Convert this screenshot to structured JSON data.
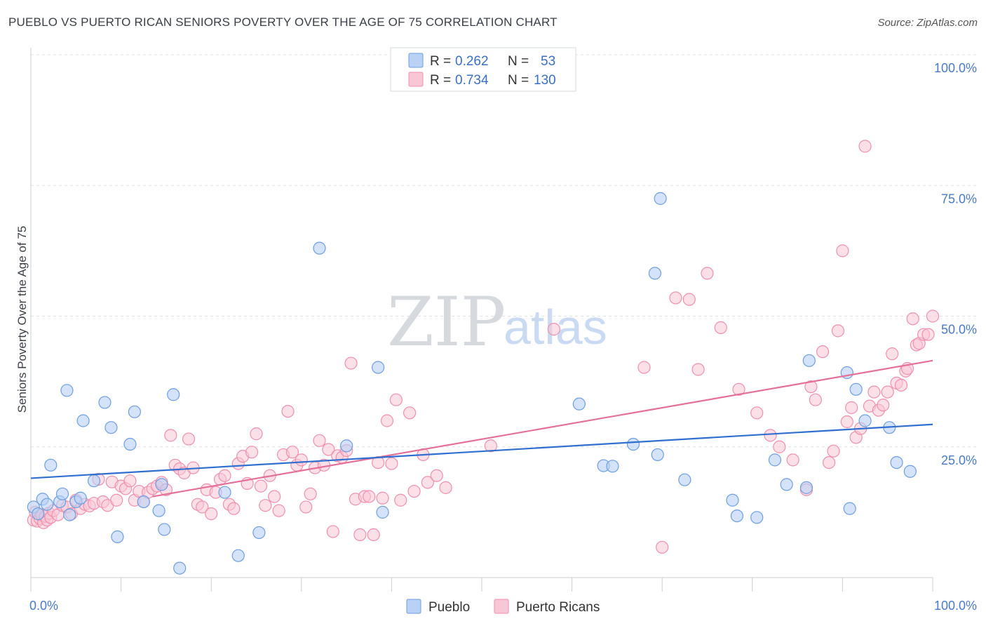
{
  "title": "PUEBLO VS PUERTO RICAN SENIORS POVERTY OVER THE AGE OF 75 CORRELATION CHART",
  "source": "Source: ZipAtlas.com",
  "watermark": {
    "zip": "ZIP",
    "atlas": "atlas"
  },
  "colors": {
    "pueblo_fill": "#b8d1f5",
    "pueblo_stroke": "#6d9ee0",
    "pueblo_line": "#2f6fcf",
    "pr_fill": "#f9c6d6",
    "pr_stroke": "#ee8fad",
    "pr_line": "#e4709a",
    "grid": "#dde0e5",
    "tick_text": "#4a7ac7"
  },
  "legend": {
    "rows": [
      {
        "r_label": "R =",
        "r_value": "0.262",
        "n_label": "N =",
        "n_value": "53"
      },
      {
        "r_label": "R =",
        "r_value": "0.734",
        "n_label": "N =",
        "n_value": "130"
      }
    ]
  },
  "bottom_legend": [
    "Pueblo",
    "Puerto Ricans"
  ],
  "chart_data": {
    "type": "scatter",
    "ylabel": "Seniors Poverty Over the Age of 75",
    "xlabel": "",
    "xlim": [
      0,
      100
    ],
    "ylim": [
      0,
      100
    ],
    "x_tick_labels": [
      "0.0%",
      "100.0%"
    ],
    "y_tick_values": [
      25,
      50,
      75,
      100
    ],
    "y_tick_labels": [
      "25.0%",
      "50.0%",
      "75.0%",
      "100.0%"
    ],
    "grid": true,
    "legend_position": "top-center",
    "series": [
      {
        "name": "Pueblo",
        "trend": [
          [
            0,
            19.0
          ],
          [
            100,
            29.3
          ]
        ],
        "points": [
          [
            0.3,
            13.5
          ],
          [
            0.8,
            12.2
          ],
          [
            1.3,
            15.0
          ],
          [
            1.8,
            14.0
          ],
          [
            2.2,
            21.5
          ],
          [
            3.2,
            14.5
          ],
          [
            3.5,
            16.0
          ],
          [
            4.3,
            12.0
          ],
          [
            5.0,
            14.5
          ],
          [
            5.5,
            15.2
          ],
          [
            4.0,
            35.8
          ],
          [
            5.8,
            30.0
          ],
          [
            7.0,
            18.5
          ],
          [
            8.2,
            33.5
          ],
          [
            8.9,
            28.7
          ],
          [
            9.6,
            7.8
          ],
          [
            11.0,
            25.5
          ],
          [
            11.5,
            31.7
          ],
          [
            12.5,
            14.5
          ],
          [
            14.2,
            12.8
          ],
          [
            14.5,
            17.8
          ],
          [
            14.8,
            9.2
          ],
          [
            15.8,
            35.0
          ],
          [
            16.5,
            1.8
          ],
          [
            21.5,
            16.3
          ],
          [
            23.0,
            4.2
          ],
          [
            25.3,
            8.6
          ],
          [
            32.0,
            63.0
          ],
          [
            35.0,
            25.2
          ],
          [
            38.5,
            40.2
          ],
          [
            39.0,
            12.5
          ],
          [
            60.8,
            33.2
          ],
          [
            63.5,
            21.4
          ],
          [
            64.5,
            21.3
          ],
          [
            66.8,
            25.5
          ],
          [
            69.2,
            58.2
          ],
          [
            69.5,
            23.5
          ],
          [
            69.8,
            72.5
          ],
          [
            72.5,
            18.7
          ],
          [
            77.8,
            14.8
          ],
          [
            78.3,
            11.8
          ],
          [
            80.5,
            11.5
          ],
          [
            82.5,
            22.5
          ],
          [
            83.8,
            17.8
          ],
          [
            86.0,
            17.2
          ],
          [
            86.3,
            41.5
          ],
          [
            90.5,
            39.2
          ],
          [
            90.8,
            13.2
          ],
          [
            91.5,
            36.0
          ],
          [
            92.5,
            30.0
          ],
          [
            95.2,
            28.7
          ],
          [
            96.0,
            22.0
          ],
          [
            97.5,
            20.3
          ]
        ]
      },
      {
        "name": "Puerto Ricans",
        "trend": [
          [
            13.5,
            15.5
          ],
          [
            100,
            41.5
          ]
        ],
        "points": [
          [
            0.3,
            11.0
          ],
          [
            0.5,
            12.5
          ],
          [
            0.7,
            10.8
          ],
          [
            1.0,
            11.3
          ],
          [
            1.2,
            12.0
          ],
          [
            1.4,
            10.5
          ],
          [
            1.6,
            11.7
          ],
          [
            1.8,
            11.0
          ],
          [
            2.0,
            12.3
          ],
          [
            2.2,
            11.5
          ],
          [
            2.5,
            12.8
          ],
          [
            3.0,
            12.0
          ],
          [
            3.5,
            13.8
          ],
          [
            4.0,
            13.5
          ],
          [
            4.5,
            12.2
          ],
          [
            5.0,
            14.8
          ],
          [
            5.5,
            13.2
          ],
          [
            6.0,
            14.0
          ],
          [
            6.5,
            13.7
          ],
          [
            7.0,
            14.2
          ],
          [
            7.5,
            18.8
          ],
          [
            8.0,
            14.5
          ],
          [
            8.5,
            13.8
          ],
          [
            9.0,
            18.3
          ],
          [
            9.5,
            14.8
          ],
          [
            10.0,
            17.5
          ],
          [
            10.5,
            17.0
          ],
          [
            11.0,
            18.5
          ],
          [
            11.5,
            14.8
          ],
          [
            12.0,
            16.5
          ],
          [
            12.5,
            14.5
          ],
          [
            13.0,
            16.3
          ],
          [
            13.5,
            17.0
          ],
          [
            14.0,
            17.5
          ],
          [
            14.5,
            18.2
          ],
          [
            15.0,
            16.8
          ],
          [
            15.5,
            27.2
          ],
          [
            16.0,
            21.5
          ],
          [
            16.5,
            20.8
          ],
          [
            17.0,
            20.0
          ],
          [
            17.5,
            26.5
          ],
          [
            18.0,
            21.0
          ],
          [
            18.5,
            14.0
          ],
          [
            19.0,
            13.5
          ],
          [
            19.5,
            16.8
          ],
          [
            20.0,
            12.2
          ],
          [
            20.5,
            16.3
          ],
          [
            21.0,
            18.8
          ],
          [
            21.5,
            19.5
          ],
          [
            22.0,
            14.0
          ],
          [
            22.5,
            13.2
          ],
          [
            23.0,
            21.8
          ],
          [
            23.5,
            23.2
          ],
          [
            24.0,
            18.0
          ],
          [
            24.5,
            24.0
          ],
          [
            25.0,
            27.5
          ],
          [
            25.5,
            17.5
          ],
          [
            26.0,
            13.8
          ],
          [
            26.5,
            19.5
          ],
          [
            27.0,
            15.5
          ],
          [
            27.5,
            12.8
          ],
          [
            28.0,
            23.5
          ],
          [
            28.5,
            31.8
          ],
          [
            29.0,
            24.0
          ],
          [
            29.5,
            21.5
          ],
          [
            30.0,
            22.5
          ],
          [
            30.5,
            13.5
          ],
          [
            31.0,
            16.0
          ],
          [
            31.5,
            21.0
          ],
          [
            32.0,
            26.2
          ],
          [
            32.5,
            21.5
          ],
          [
            33.0,
            24.5
          ],
          [
            33.5,
            8.8
          ],
          [
            34.0,
            23.3
          ],
          [
            34.5,
            23.0
          ],
          [
            35.0,
            24.3
          ],
          [
            35.5,
            41.0
          ],
          [
            36.0,
            15.0
          ],
          [
            36.5,
            8.2
          ],
          [
            37.0,
            15.5
          ],
          [
            37.5,
            15.5
          ],
          [
            38.0,
            8.2
          ],
          [
            38.5,
            22.0
          ],
          [
            39.0,
            15.2
          ],
          [
            39.5,
            30.0
          ],
          [
            40.0,
            21.8
          ],
          [
            40.5,
            34.0
          ],
          [
            41.0,
            14.8
          ],
          [
            42.0,
            31.5
          ],
          [
            42.5,
            16.5
          ],
          [
            43.5,
            23.5
          ],
          [
            44.0,
            18.2
          ],
          [
            45.0,
            19.5
          ],
          [
            46.0,
            17.2
          ],
          [
            51.0,
            25.2
          ],
          [
            58.0,
            47.5
          ],
          [
            68.0,
            40.2
          ],
          [
            70.0,
            5.8
          ],
          [
            71.5,
            53.5
          ],
          [
            73.0,
            53.2
          ],
          [
            74.0,
            39.8
          ],
          [
            75.0,
            58.2
          ],
          [
            76.5,
            47.8
          ],
          [
            78.5,
            36.0
          ],
          [
            80.5,
            31.5
          ],
          [
            82.0,
            27.2
          ],
          [
            83.0,
            25.0
          ],
          [
            84.5,
            22.5
          ],
          [
            86.0,
            16.8
          ],
          [
            86.5,
            36.5
          ],
          [
            87.0,
            34.0
          ],
          [
            87.8,
            43.2
          ],
          [
            88.5,
            22.0
          ],
          [
            89.0,
            24.2
          ],
          [
            89.5,
            47.2
          ],
          [
            90.0,
            62.5
          ],
          [
            90.5,
            29.8
          ],
          [
            91.0,
            32.5
          ],
          [
            91.5,
            26.8
          ],
          [
            92.0,
            28.5
          ],
          [
            92.5,
            82.5
          ],
          [
            93.0,
            32.8
          ],
          [
            93.5,
            35.5
          ],
          [
            94.0,
            32.0
          ],
          [
            94.5,
            33.0
          ],
          [
            95.0,
            35.5
          ],
          [
            95.5,
            42.8
          ],
          [
            96.0,
            37.2
          ],
          [
            96.5,
            36.8
          ],
          [
            97.0,
            39.5
          ],
          [
            97.2,
            40.0
          ],
          [
            97.8,
            49.5
          ],
          [
            98.2,
            44.5
          ],
          [
            98.5,
            44.8
          ],
          [
            99.0,
            46.5
          ],
          [
            99.5,
            46.5
          ],
          [
            100.0,
            50.0
          ]
        ]
      }
    ]
  }
}
